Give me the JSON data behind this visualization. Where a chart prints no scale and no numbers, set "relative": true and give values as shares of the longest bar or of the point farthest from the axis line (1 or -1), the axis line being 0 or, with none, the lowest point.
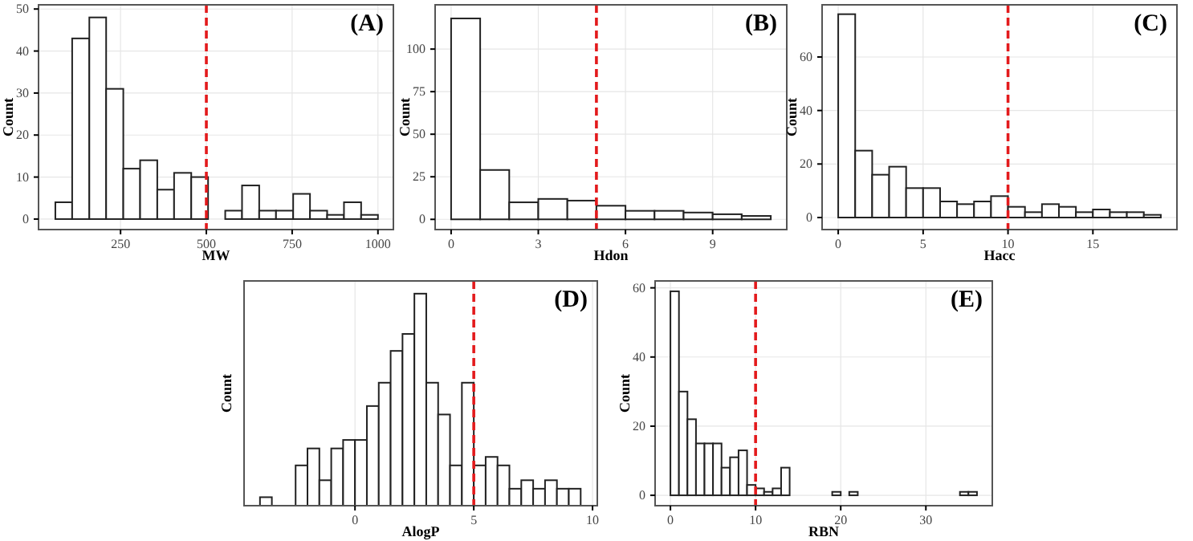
{
  "chart_data": [
    {
      "type": "histogram",
      "title": "(A)",
      "xlabel": "MW",
      "ylabel": "Count",
      "bins": [
        60,
        109,
        159,
        208,
        258,
        307,
        357,
        406,
        456,
        505,
        555,
        604,
        654,
        703,
        753,
        802,
        852,
        901,
        951,
        1000
      ],
      "values": [
        4,
        43,
        48,
        31,
        12,
        14,
        7,
        11,
        10,
        0,
        2,
        8,
        2,
        2,
        6,
        2,
        1,
        4,
        1
      ],
      "xlim": [
        11,
        1045
      ],
      "xticks": [
        250,
        500,
        750,
        1000
      ],
      "ylim": [
        -2.5,
        51
      ],
      "yticks": [
        0,
        10,
        20,
        30,
        40,
        50
      ],
      "grid": true,
      "ref_lines": [
        {
          "axis": "x",
          "value": 500,
          "color": "#e31a1c",
          "line_style": "dashed"
        }
      ]
    },
    {
      "type": "histogram",
      "title": "(B)",
      "xlabel": "Hdon",
      "ylabel": "Count",
      "bins": [
        0,
        1,
        2,
        3,
        4,
        5,
        6,
        7,
        8,
        9,
        10,
        11
      ],
      "values": [
        118,
        29,
        10,
        12,
        11,
        8,
        5,
        5,
        4,
        3,
        2
      ],
      "xlim": [
        -0.55,
        11.55
      ],
      "xticks": [
        0,
        3,
        6,
        9
      ],
      "ylim": [
        -6,
        126
      ],
      "yticks": [
        0,
        25,
        50,
        75,
        100
      ],
      "grid": true,
      "ref_lines": [
        {
          "axis": "x",
          "value": 5,
          "color": "#e31a1c",
          "line_style": "dashed"
        }
      ]
    },
    {
      "type": "histogram",
      "title": "(C)",
      "xlabel": "Hacc",
      "ylabel": "Count",
      "bins": [
        0,
        1,
        2,
        3,
        4,
        5,
        6,
        7,
        8,
        9,
        10,
        11,
        12,
        13,
        14,
        15,
        16,
        17,
        18,
        19
      ],
      "values": [
        76,
        25,
        16,
        19,
        11,
        11,
        6,
        5,
        6,
        8,
        4,
        2,
        5,
        4,
        2,
        3,
        2,
        2,
        1
      ],
      "xlim": [
        -0.95,
        19.95
      ],
      "xticks": [
        0,
        5,
        10,
        15
      ],
      "ylim": [
        -4.5,
        79.5
      ],
      "yticks": [
        0,
        20,
        40,
        60
      ],
      "grid": true,
      "ref_lines": [
        {
          "axis": "x",
          "value": 10,
          "color": "#e31a1c",
          "line_style": "dashed"
        }
      ]
    },
    {
      "type": "bar",
      "title": "(D)",
      "xlabel": "AlogP",
      "ylabel": "Count",
      "relative": true,
      "x": [
        -3.75,
        -3.25,
        -2.75,
        -2.25,
        -1.75,
        -1.25,
        -0.75,
        -0.25,
        0.25,
        0.75,
        1.25,
        1.75,
        2.25,
        2.75,
        3.25,
        3.75,
        4.25,
        4.75,
        5.25,
        5.75,
        6.25,
        6.75,
        7.25,
        7.75,
        8.25,
        8.75,
        9.25
      ],
      "values": [
        0.04,
        0,
        0,
        0.19,
        0.27,
        0.12,
        0.27,
        0.31,
        0.31,
        0.47,
        0.58,
        0.73,
        0.81,
        1,
        0.58,
        0.43,
        0.19,
        0.58,
        0.19,
        0.23,
        0.19,
        0.08,
        0.12,
        0.08,
        0.12,
        0.08,
        0.08
      ],
      "xlim": [
        -4.67,
        10.2
      ],
      "xticks": [
        0,
        5,
        10
      ],
      "tick_labels": "x",
      "grid": "x",
      "ref_lines": [
        {
          "axis": "x",
          "value": 5,
          "color": "#e31a1c",
          "line_style": "dashed"
        }
      ]
    },
    {
      "type": "histogram",
      "title": "(E)",
      "xlabel": "RBN",
      "ylabel": "Count",
      "bins": [
        0,
        1,
        2,
        3,
        4,
        5,
        6,
        7,
        8,
        9,
        10,
        11,
        12,
        13,
        14,
        15,
        16,
        17,
        18,
        19,
        20,
        21,
        22,
        23,
        24,
        25,
        26,
        27,
        28,
        29,
        30,
        31,
        32,
        33,
        34,
        35,
        36
      ],
      "values": [
        59,
        30,
        22,
        15,
        15,
        15,
        8,
        11,
        13,
        3,
        2,
        1,
        2,
        8,
        0,
        0,
        0,
        0,
        0,
        1,
        0,
        1,
        0,
        0,
        0,
        0,
        0,
        0,
        0,
        0,
        0,
        0,
        0,
        0,
        1,
        1
      ],
      "xlim": [
        -1.8,
        37.8
      ],
      "xticks": [
        0,
        10,
        20,
        30
      ],
      "ylim": [
        -3,
        62
      ],
      "yticks": [
        0,
        20,
        40,
        60
      ],
      "grid": true,
      "ref_lines": [
        {
          "axis": "x",
          "value": 10,
          "color": "#e31a1c",
          "line_style": "dashed"
        }
      ]
    }
  ]
}
